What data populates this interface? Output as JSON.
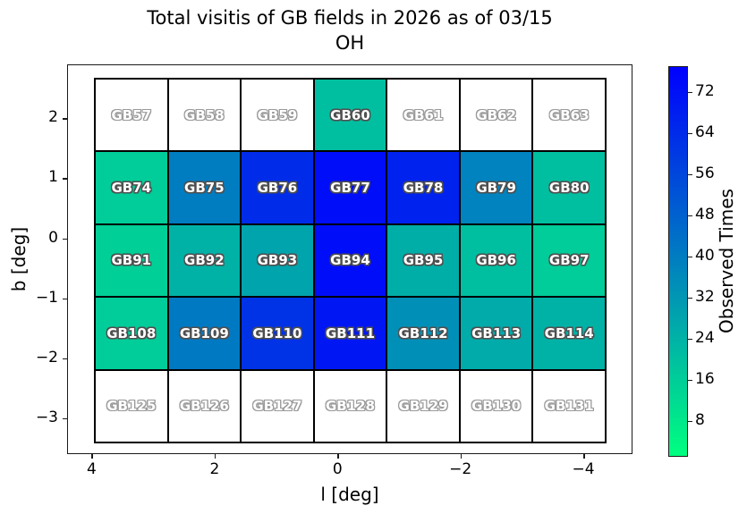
{
  "chart_data": {
    "type": "heatmap",
    "title": "Total visitis of GB fields in 2026 as of 03/15",
    "subtitle": "OH",
    "xlabel": "l [deg]",
    "ylabel": "b [deg]",
    "x_ticks": [
      4,
      2,
      0,
      -2,
      -4
    ],
    "y_ticks": [
      2,
      1,
      0,
      -1,
      -2,
      -3
    ],
    "xlim": [
      4.4,
      -4.8
    ],
    "ylim": [
      -3.6,
      2.9
    ],
    "grid": "off",
    "fields": [
      [
        "GB57",
        "GB58",
        "GB59",
        "GB60",
        "GB61",
        "GB62",
        "GB63"
      ],
      [
        "GB74",
        "GB75",
        "GB76",
        "GB77",
        "GB78",
        "GB79",
        "GB80"
      ],
      [
        "GB91",
        "GB92",
        "GB93",
        "GB94",
        "GB95",
        "GB96",
        "GB97"
      ],
      [
        "GB108",
        "GB109",
        "GB110",
        "GB111",
        "GB112",
        "GB113",
        "GB114"
      ],
      [
        "GB125",
        "GB126",
        "GB127",
        "GB128",
        "GB129",
        "GB130",
        "GB131"
      ]
    ],
    "values": [
      [
        null,
        null,
        null,
        20,
        null,
        null,
        null
      ],
      [
        16,
        40,
        64,
        73,
        67,
        38,
        20
      ],
      [
        15,
        24,
        28,
        73,
        25,
        20,
        16
      ],
      [
        16,
        41,
        62,
        70,
        34,
        26,
        24
      ],
      [
        null,
        null,
        null,
        null,
        null,
        null,
        null
      ]
    ],
    "empty_cell_color": "#ffffff",
    "cell_border_color": "#000000",
    "colorbar": {
      "label": "Observed Times",
      "ticks": [
        8,
        16,
        24,
        32,
        40,
        48,
        56,
        64,
        72
      ],
      "vmin": 1,
      "vmax": 77,
      "colormap": "winter_r",
      "color_min": "#00ff80",
      "color_max": "#0000ff",
      "position": "right"
    }
  }
}
